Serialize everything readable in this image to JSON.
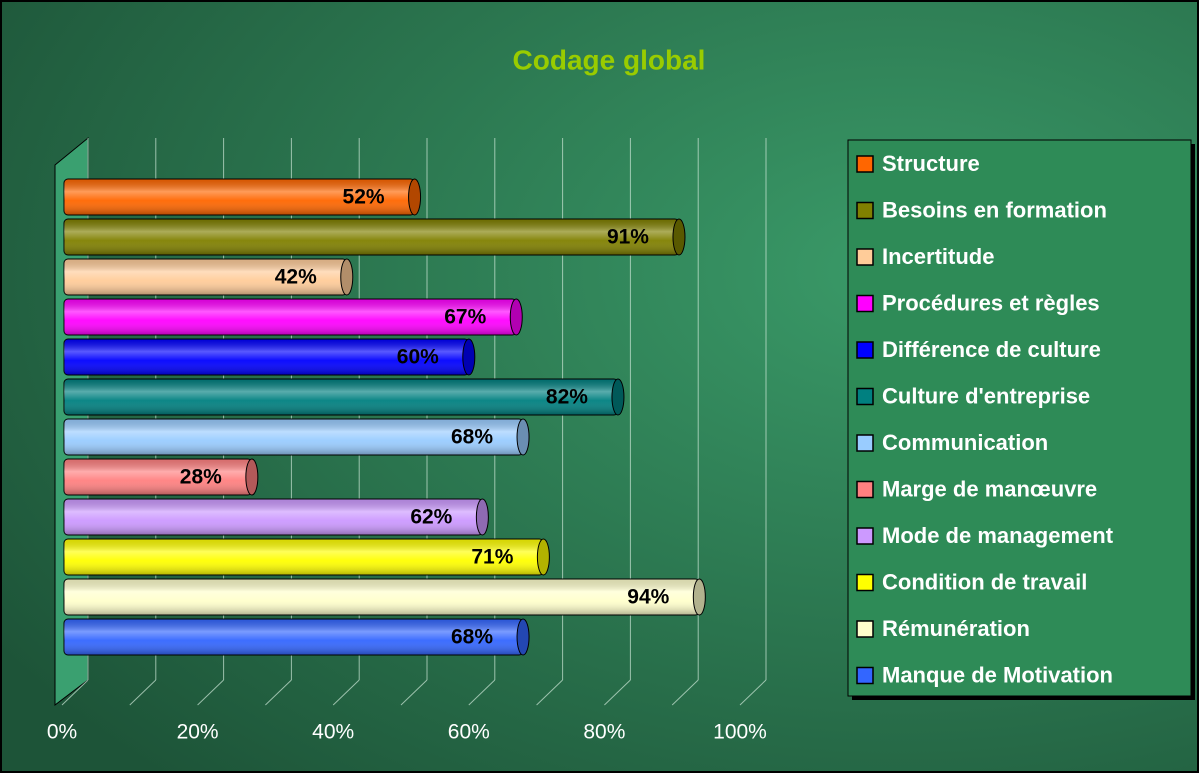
{
  "chart_data": {
    "type": "bar",
    "orientation": "horizontal",
    "title": "Codage global",
    "categories": [
      "Structure",
      "Besoins en formation",
      "Incertitude",
      "Procédures et règles",
      "Différence de culture",
      "Culture d'entreprise",
      "Communication",
      "Marge de manœuvre",
      "Mode de management",
      "Condition de travail",
      "Rémunération",
      "Manque de Motivation"
    ],
    "values": [
      52,
      91,
      42,
      67,
      60,
      82,
      68,
      28,
      62,
      71,
      94,
      68
    ],
    "value_labels": [
      "52%",
      "91%",
      "42%",
      "67%",
      "60%",
      "82%",
      "68%",
      "28%",
      "62%",
      "71%",
      "94%",
      "68%"
    ],
    "colors": [
      "#ff6600",
      "#808000",
      "#ffcc99",
      "#ff00ff",
      "#0000ff",
      "#008080",
      "#99ccff",
      "#ff8080",
      "#cc99ff",
      "#ffff00",
      "#ffffcc",
      "#3366ff"
    ],
    "xlim": [
      0,
      100
    ],
    "xticks": [
      {
        "value": 0,
        "label": "0%"
      },
      {
        "value": 20,
        "label": "20%"
      },
      {
        "value": 40,
        "label": "40%"
      },
      {
        "value": 60,
        "label": "60%"
      },
      {
        "value": 80,
        "label": "80%"
      },
      {
        "value": 100,
        "label": "100%"
      }
    ],
    "grid": true,
    "legend": "right"
  }
}
